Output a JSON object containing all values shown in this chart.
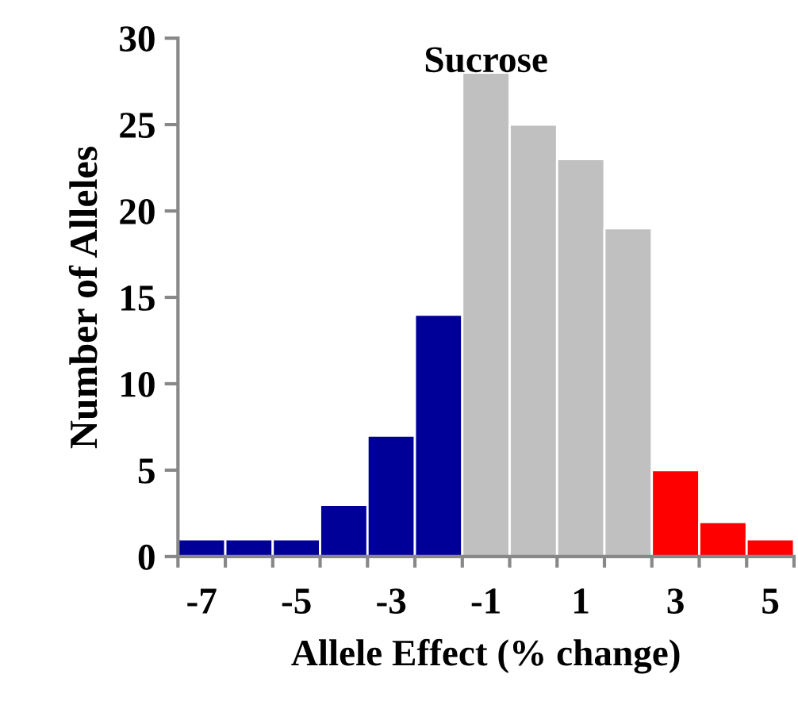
{
  "chart_data": {
    "type": "histogram",
    "title": "Sucrose",
    "xlabel": "Allele Effect (% change)",
    "ylabel": "Number of Alleles",
    "bins": [
      -7.5,
      -6.5,
      -5.5,
      -4.5,
      -3.5,
      -2.5,
      -1.5,
      -0.5,
      0.5,
      1.5,
      2.5,
      3.5,
      4.5,
      5.5
    ],
    "values": [
      1,
      1,
      1,
      3,
      7,
      14,
      28,
      25,
      23,
      19,
      5,
      2,
      1
    ],
    "colors": [
      "#000099",
      "#000099",
      "#000099",
      "#000099",
      "#000099",
      "#000099",
      "#c0c0c0",
      "#c0c0c0",
      "#c0c0c0",
      "#c0c0c0",
      "#ff0000",
      "#ff0000",
      "#ff0000"
    ],
    "xlim": [
      -7.5,
      5.5
    ],
    "xticks": [
      {
        "value": -7.5,
        "label": null
      },
      {
        "value": -7,
        "label": "-7"
      },
      {
        "value": -6.5,
        "label": null
      },
      {
        "value": -5.5,
        "label": null
      },
      {
        "value": -5,
        "label": "-5"
      },
      {
        "value": -4.5,
        "label": null
      },
      {
        "value": -3.5,
        "label": null
      },
      {
        "value": -3,
        "label": "-3"
      },
      {
        "value": -2.5,
        "label": null
      },
      {
        "value": -1.5,
        "label": null
      },
      {
        "value": -1,
        "label": "-1"
      },
      {
        "value": -0.5,
        "label": null
      },
      {
        "value": 0.5,
        "label": null
      },
      {
        "value": 1,
        "label": "1"
      },
      {
        "value": 1.5,
        "label": null
      },
      {
        "value": 2.5,
        "label": null
      },
      {
        "value": 3,
        "label": "3"
      },
      {
        "value": 3.5,
        "label": null
      },
      {
        "value": 4.5,
        "label": null
      },
      {
        "value": 5,
        "label": "5"
      },
      {
        "value": 5.5,
        "label": null
      }
    ],
    "ylim": [
      0,
      30
    ],
    "yticks": [
      0,
      5,
      10,
      15,
      20,
      25,
      30
    ],
    "grid": false
  }
}
